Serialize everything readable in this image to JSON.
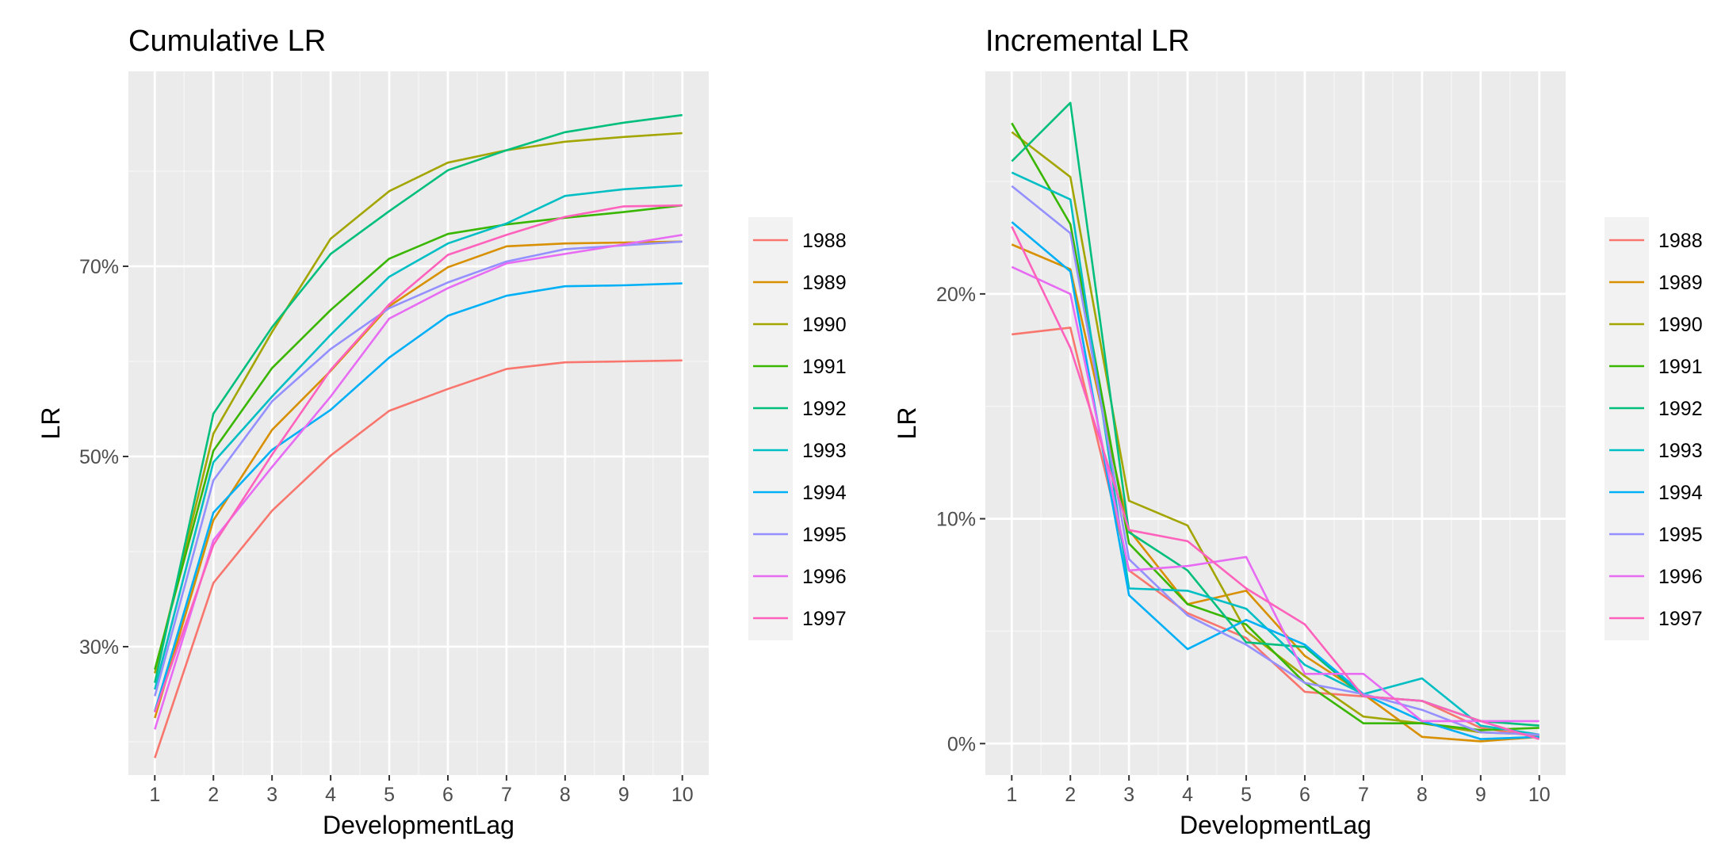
{
  "colors": {
    "panel_background": "#EBEBEB",
    "grid_major": "#FFFFFF",
    "grid_minor": "#F5F5F5",
    "tick_text": "#4D4D4D",
    "legend_background": "#F2F2F2"
  },
  "series_colors": {
    "1988": "#F8766D",
    "1989": "#D89000",
    "1990": "#A3A500",
    "1991": "#39B600",
    "1992": "#00BF7D",
    "1993": "#00BFC4",
    "1994": "#00B0F6",
    "1995": "#9590FF",
    "1996": "#E76BF3",
    "1997": "#FF62BC"
  },
  "chart_data": [
    {
      "type": "line",
      "title": "Cumulative LR",
      "xlabel": "DevelopmentLag",
      "ylabel": "LR",
      "x": [
        1,
        2,
        3,
        4,
        5,
        6,
        7,
        8,
        9,
        10
      ],
      "xlim": [
        0.55,
        10.45
      ],
      "ylim": [
        0.165,
        0.905
      ],
      "yticks": [
        0.3,
        0.5,
        0.7
      ],
      "ytick_labels": [
        "30%",
        "50%",
        "70%"
      ],
      "grid": true,
      "legend_position": "right",
      "series": [
        {
          "name": "1988",
          "values": [
            0.183,
            0.367,
            0.443,
            0.501,
            0.548,
            0.571,
            0.592,
            0.599,
            0.6,
            0.601
          ]
        },
        {
          "name": "1989",
          "values": [
            0.225,
            0.433,
            0.528,
            0.59,
            0.658,
            0.699,
            0.721,
            0.724,
            0.725,
            0.726
          ]
        },
        {
          "name": "1990",
          "values": [
            0.272,
            0.524,
            0.631,
            0.729,
            0.779,
            0.809,
            0.822,
            0.831,
            0.836,
            0.84
          ]
        },
        {
          "name": "1991",
          "values": [
            0.276,
            0.506,
            0.593,
            0.654,
            0.708,
            0.734,
            0.744,
            0.751,
            0.757,
            0.764
          ]
        },
        {
          "name": "1992",
          "values": [
            0.262,
            0.545,
            0.636,
            0.713,
            0.758,
            0.801,
            0.822,
            0.841,
            0.851,
            0.859
          ]
        },
        {
          "name": "1993",
          "values": [
            0.255,
            0.494,
            0.563,
            0.628,
            0.689,
            0.724,
            0.745,
            0.774,
            0.781,
            0.785
          ]
        },
        {
          "name": "1994",
          "values": [
            0.232,
            0.441,
            0.507,
            0.549,
            0.604,
            0.648,
            0.669,
            0.679,
            0.68,
            0.682
          ]
        },
        {
          "name": "1995",
          "values": [
            0.248,
            0.475,
            0.558,
            0.613,
            0.656,
            0.683,
            0.705,
            0.718,
            0.722,
            0.726
          ]
        },
        {
          "name": "1996",
          "values": [
            0.213,
            0.412,
            0.489,
            0.563,
            0.645,
            0.677,
            0.703,
            0.713,
            0.723,
            0.733
          ]
        },
        {
          "name": "1997",
          "values": [
            0.231,
            0.407,
            0.502,
            0.591,
            0.66,
            0.712,
            0.733,
            0.752,
            0.763,
            0.764
          ]
        }
      ]
    },
    {
      "type": "line",
      "title": "Incremental LR",
      "xlabel": "DevelopmentLag",
      "ylabel": "LR",
      "x": [
        1,
        2,
        3,
        4,
        5,
        6,
        7,
        8,
        9,
        10
      ],
      "xlim": [
        0.55,
        10.45
      ],
      "ylim": [
        -0.014,
        0.299
      ],
      "yticks": [
        0.0,
        0.1,
        0.2
      ],
      "ytick_labels": [
        "0%",
        "10%",
        "20%"
      ],
      "grid": true,
      "legend_position": "right",
      "series": [
        {
          "name": "1988",
          "values": [
            0.182,
            0.185,
            0.077,
            0.058,
            0.047,
            0.023,
            0.021,
            0.019,
            0.007,
            0.003
          ]
        },
        {
          "name": "1989",
          "values": [
            0.222,
            0.211,
            0.095,
            0.062,
            0.068,
            0.039,
            0.022,
            0.003,
            0.001,
            0.003
          ]
        },
        {
          "name": "1990",
          "values": [
            0.272,
            0.252,
            0.108,
            0.097,
            0.05,
            0.03,
            0.012,
            0.009,
            0.005,
            0.004
          ]
        },
        {
          "name": "1991",
          "values": [
            0.276,
            0.231,
            0.089,
            0.062,
            0.053,
            0.027,
            0.009,
            0.009,
            0.006,
            0.007
          ]
        },
        {
          "name": "1992",
          "values": [
            0.259,
            0.285,
            0.094,
            0.077,
            0.045,
            0.043,
            0.021,
            0.019,
            0.01,
            0.008
          ]
        },
        {
          "name": "1993",
          "values": [
            0.254,
            0.242,
            0.069,
            0.068,
            0.06,
            0.035,
            0.022,
            0.029,
            0.008,
            0.004
          ]
        },
        {
          "name": "1994",
          "values": [
            0.232,
            0.21,
            0.066,
            0.042,
            0.055,
            0.044,
            0.022,
            0.01,
            0.002,
            0.003
          ]
        },
        {
          "name": "1995",
          "values": [
            0.248,
            0.227,
            0.082,
            0.057,
            0.044,
            0.027,
            0.022,
            0.015,
            0.005,
            0.004
          ]
        },
        {
          "name": "1996",
          "values": [
            0.212,
            0.2,
            0.077,
            0.079,
            0.083,
            0.031,
            0.031,
            0.01,
            0.01,
            0.01
          ]
        },
        {
          "name": "1997",
          "values": [
            0.23,
            0.176,
            0.095,
            0.09,
            0.069,
            0.053,
            0.021,
            0.019,
            0.01,
            0.002
          ]
        }
      ]
    }
  ]
}
